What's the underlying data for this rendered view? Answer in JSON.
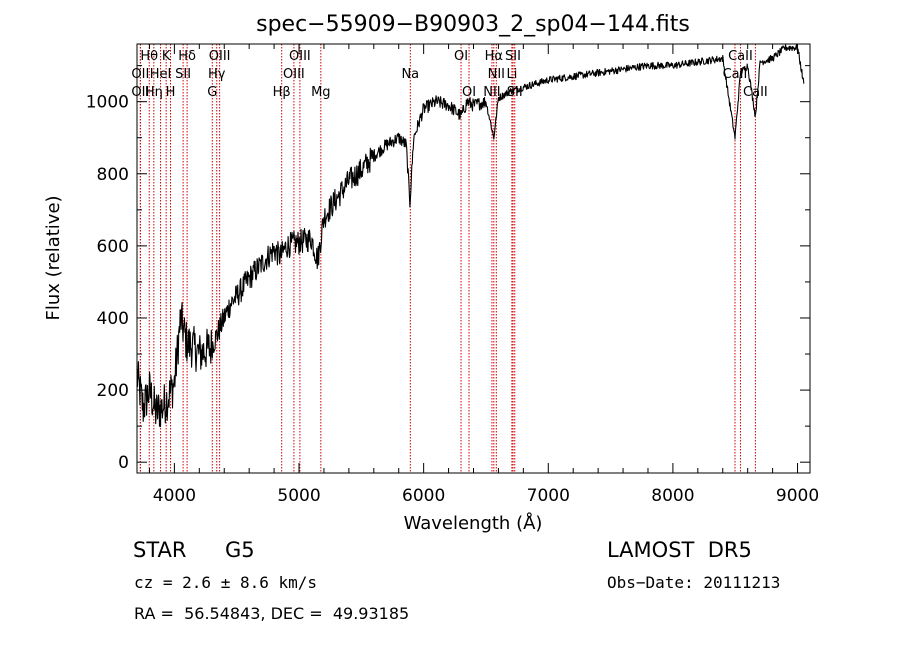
{
  "chart_data": {
    "type": "line",
    "title": "spec−55909−B90903_2_sp04−144.fits",
    "xlabel": "Wavelength (Å)",
    "ylabel": "Flux (relative)",
    "xlim": [
      3700,
      9100
    ],
    "ylim": [
      -30,
      1160
    ],
    "x_ticks": [
      4000,
      5000,
      6000,
      7000,
      8000,
      9000
    ],
    "y_ticks": [
      0,
      200,
      400,
      600,
      800,
      1000
    ],
    "grid": false,
    "series": [
      {
        "color": "#000000",
        "x": [
          3700,
          3750,
          3800,
          3850,
          3900,
          3950,
          4000,
          4050,
          4100,
          4150,
          4200,
          4250,
          4300,
          4350,
          4400,
          4450,
          4500,
          4600,
          4700,
          4800,
          4850,
          4900,
          5000,
          5100,
          5150,
          5200,
          5300,
          5400,
          5500,
          5600,
          5700,
          5800,
          5860,
          5890,
          5920,
          6000,
          6100,
          6200,
          6300,
          6350,
          6400,
          6500,
          6563,
          6600,
          6700,
          6800,
          7000,
          7200,
          7400,
          7600,
          7800,
          8000,
          8200,
          8400,
          8498,
          8542,
          8600,
          8662,
          8700,
          8800,
          8900,
          9000,
          9050
        ],
        "y": [
          240,
          150,
          200,
          140,
          150,
          180,
          220,
          400,
          330,
          320,
          300,
          310,
          320,
          360,
          400,
          440,
          460,
          510,
          550,
          590,
          570,
          600,
          610,
          620,
          560,
          680,
          730,
          780,
          810,
          850,
          880,
          900,
          880,
          720,
          900,
          980,
          1000,
          990,
          960,
          1000,
          990,
          1000,
          900,
          1010,
          1030,
          1040,
          1060,
          1070,
          1080,
          1090,
          1100,
          1100,
          1110,
          1120,
          900,
          1080,
          1100,
          960,
          1110,
          1120,
          1150,
          1150,
          1050
        ]
      }
    ],
    "spectral_lines": [
      {
        "label": "Hθ",
        "x": 3798,
        "row": 1
      },
      {
        "label": "OII",
        "x": 3727,
        "row": 2
      },
      {
        "label": "OII",
        "x": 3727,
        "row": 3
      },
      {
        "label": "K",
        "x": 3934,
        "row": 1
      },
      {
        "label": "HeI",
        "x": 3889,
        "row": 2
      },
      {
        "label": "Hη",
        "x": 3835,
        "row": 3
      },
      {
        "label": "Hδ",
        "x": 4102,
        "row": 1
      },
      {
        "label": "SII",
        "x": 4070,
        "row": 2
      },
      {
        "label": "H",
        "x": 3969,
        "row": 3
      },
      {
        "label": "OIII",
        "x": 4363,
        "row": 1
      },
      {
        "label": "Hγ",
        "x": 4340,
        "row": 2
      },
      {
        "label": "G",
        "x": 4304,
        "row": 3
      },
      {
        "label": "OIII",
        "x": 5007,
        "row": 1
      },
      {
        "label": "OIII",
        "x": 4959,
        "row": 2
      },
      {
        "label": "Hβ",
        "x": 4861,
        "row": 3
      },
      {
        "label": "Mg",
        "x": 5175,
        "row": 3
      },
      {
        "label": "Na",
        "x": 5893,
        "row": 2
      },
      {
        "label": "OI",
        "x": 6300,
        "row": 1
      },
      {
        "label": "OI",
        "x": 6364,
        "row": 3
      },
      {
        "label": "Hα",
        "x": 6563,
        "row": 1
      },
      {
        "label": "NII",
        "x": 6583,
        "row": 2
      },
      {
        "label": "NII",
        "x": 6548,
        "row": 3
      },
      {
        "label": "SII",
        "x": 6717,
        "row": 1
      },
      {
        "label": "Li",
        "x": 6708,
        "row": 2
      },
      {
        "label": "SII",
        "x": 6731,
        "row": 3
      },
      {
        "label": "CaII",
        "x": 8542,
        "row": 1
      },
      {
        "label": "CaII",
        "x": 8498,
        "row": 2
      },
      {
        "label": "CaII",
        "x": 8662,
        "row": 3
      }
    ]
  },
  "info": {
    "class": "STAR",
    "subclass": "G5",
    "survey": "LAMOST  DR5",
    "cz": "cz = 2.6 ± 8.6 km/s",
    "obs_date": "Obs−Date: 20111213",
    "coords": "RA =  56.54843, DEC =  49.93185"
  }
}
